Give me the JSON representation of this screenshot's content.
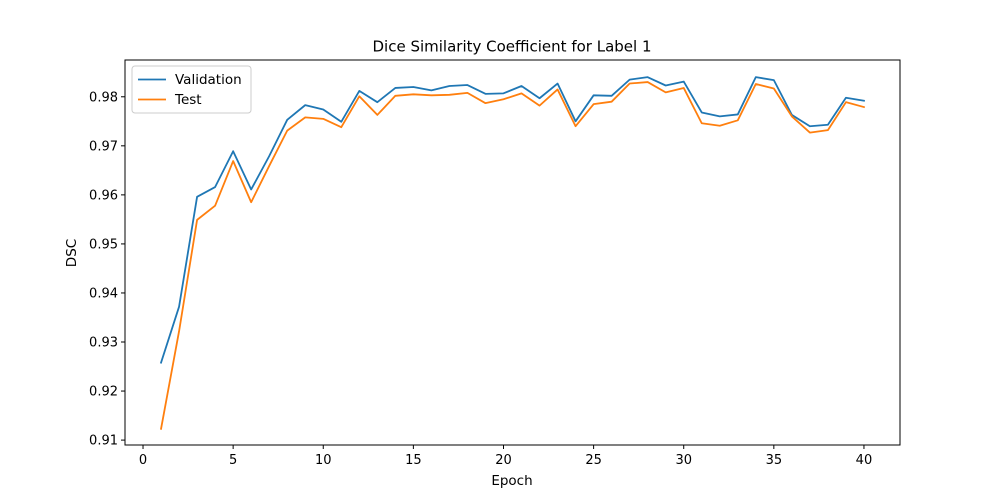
{
  "chart_data": {
    "type": "line",
    "title": "Dice Similarity Coefficient for Label 1",
    "xlabel": "Epoch",
    "ylabel": "DSC",
    "xlim": [
      -1,
      42
    ],
    "ylim": [
      0.909,
      0.9875
    ],
    "xticks": [
      0,
      5,
      10,
      15,
      20,
      25,
      30,
      35,
      40
    ],
    "yticks": [
      0.91,
      0.92,
      0.93,
      0.94,
      0.95,
      0.96,
      0.97,
      0.98
    ],
    "grid": false,
    "legend_position": "upper-left",
    "x": [
      1,
      2,
      3,
      4,
      5,
      6,
      7,
      8,
      9,
      10,
      11,
      12,
      13,
      14,
      15,
      16,
      17,
      18,
      19,
      20,
      21,
      22,
      23,
      24,
      25,
      26,
      27,
      28,
      29,
      30,
      31,
      32,
      33,
      34,
      35,
      36,
      37,
      38,
      39,
      40
    ],
    "series": [
      {
        "name": "Validation",
        "color": "#1f77b4",
        "values": [
          0.9258,
          0.9372,
          0.9596,
          0.9616,
          0.9689,
          0.9611,
          0.9679,
          0.9753,
          0.9783,
          0.9774,
          0.9749,
          0.9812,
          0.9789,
          0.9818,
          0.982,
          0.9813,
          0.9822,
          0.9824,
          0.9806,
          0.9807,
          0.9822,
          0.9797,
          0.9827,
          0.975,
          0.9803,
          0.9802,
          0.9835,
          0.984,
          0.9823,
          0.9831,
          0.9768,
          0.976,
          0.9764,
          0.984,
          0.9834,
          0.9763,
          0.974,
          0.9743,
          0.9798,
          0.9792
        ]
      },
      {
        "name": "Test",
        "color": "#ff7f0e",
        "values": [
          0.9123,
          0.9322,
          0.9549,
          0.9578,
          0.9669,
          0.9585,
          0.9659,
          0.9731,
          0.9758,
          0.9755,
          0.9738,
          0.9801,
          0.9763,
          0.9802,
          0.9805,
          0.9803,
          0.9804,
          0.9808,
          0.9787,
          0.9795,
          0.9807,
          0.9782,
          0.9815,
          0.974,
          0.9785,
          0.979,
          0.9827,
          0.983,
          0.9809,
          0.9818,
          0.9746,
          0.9741,
          0.9752,
          0.9826,
          0.9817,
          0.976,
          0.9727,
          0.9732,
          0.9789,
          0.9779
        ]
      }
    ]
  }
}
